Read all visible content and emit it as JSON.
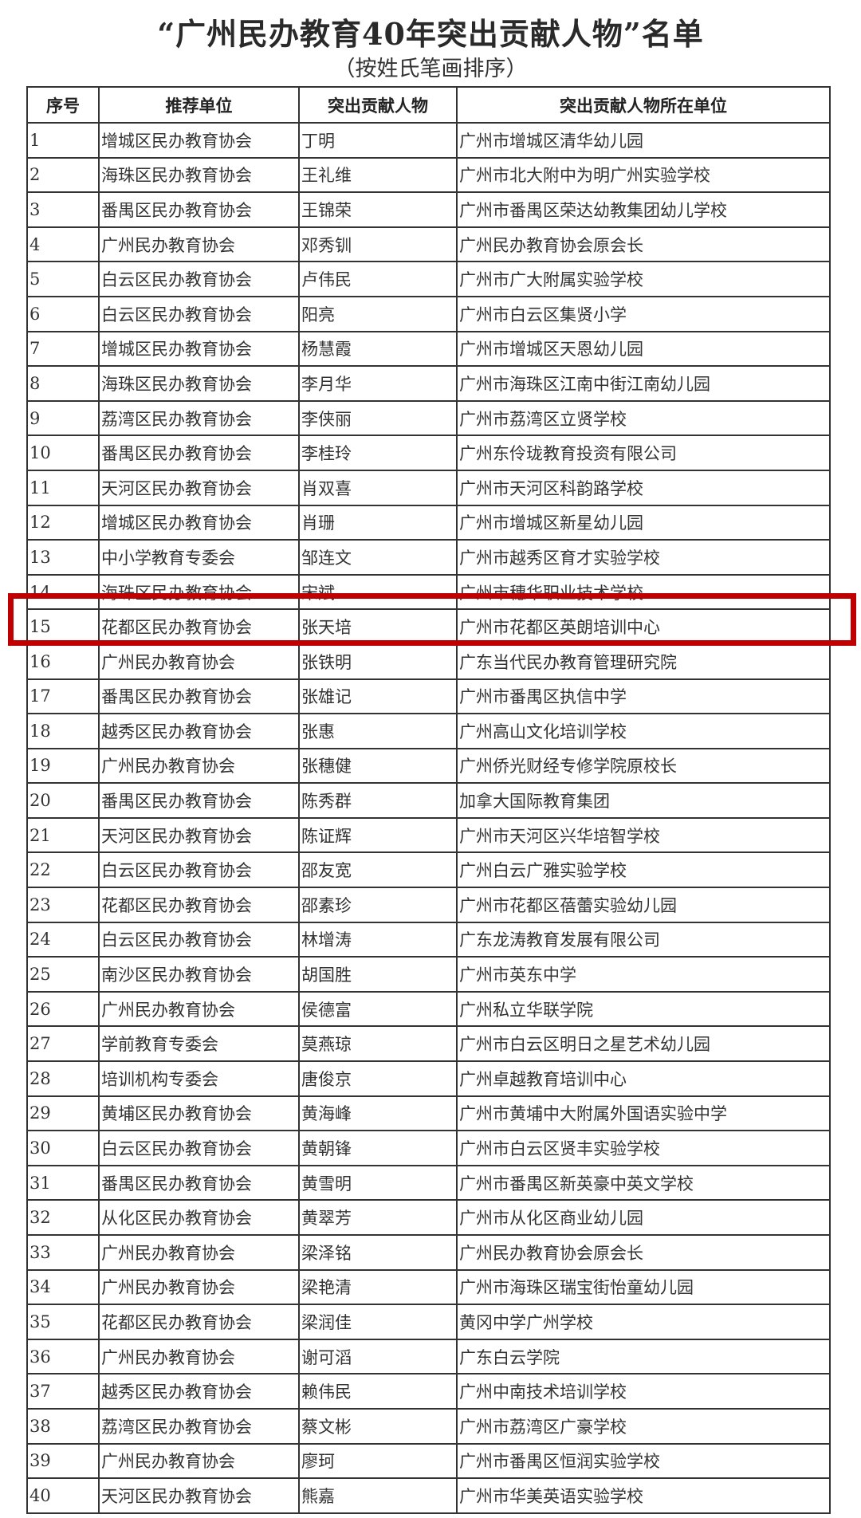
{
  "title": "“广州民办教育40年突出贡献人物”名单",
  "subtitle": "（按姓氏笔画排序）",
  "highlight_color": "#c00000",
  "highlighted_row": "15",
  "table": {
    "headers": [
      "序号",
      "推荐单位",
      "突出贡献人物",
      "突出贡献人物所在单位"
    ],
    "rows": [
      [
        "1",
        "增城区民办教育协会",
        "丁明",
        "广州市增城区清华幼儿园"
      ],
      [
        "2",
        "海珠区民办教育协会",
        "王礼维",
        "广州市北大附中为明广州实验学校"
      ],
      [
        "3",
        "番禺区民办教育协会",
        "王锦荣",
        "广州市番禺区荣达幼教集团幼儿学校"
      ],
      [
        "4",
        "广州民办教育协会",
        "邓秀钏",
        "广州民办教育协会原会长"
      ],
      [
        "5",
        "白云区民办教育协会",
        "卢伟民",
        "广州市广大附属实验学校"
      ],
      [
        "6",
        "白云区民办教育协会",
        "阳亮",
        "广州市白云区集贤小学"
      ],
      [
        "7",
        "增城区民办教育协会",
        "杨慧霞",
        "广州市增城区天恩幼儿园"
      ],
      [
        "8",
        "海珠区民办教育协会",
        "李月华",
        "广州市海珠区江南中街江南幼儿园"
      ],
      [
        "9",
        "荔湾区民办教育协会",
        "李侠丽",
        "广州市荔湾区立贤学校"
      ],
      [
        "10",
        "番禺区民办教育协会",
        "李桂玲",
        "广州东伶珑教育投资有限公司"
      ],
      [
        "11",
        "天河区民办教育协会",
        "肖双喜",
        "广州市天河区科韵路学校"
      ],
      [
        "12",
        "增城区民办教育协会",
        "肖珊",
        "广州市增城区新星幼儿园"
      ],
      [
        "13",
        "中小学教育专委会",
        "邹连文",
        "广州市越秀区育才实验学校"
      ],
      [
        "14",
        "海珠区民办教育协会",
        "宋斌",
        "广州市穗华职业技术学校"
      ],
      [
        "15",
        "花都区民办教育协会",
        "张天培",
        "广州市花都区英朗培训中心"
      ],
      [
        "16",
        "广州民办教育协会",
        "张铁明",
        "广东当代民办教育管理研究院"
      ],
      [
        "17",
        "番禺区民办教育协会",
        "张雄记",
        "广州市番禺区执信中学"
      ],
      [
        "18",
        "越秀区民办教育协会",
        "张惠",
        "广州高山文化培训学校"
      ],
      [
        "19",
        "广州民办教育协会",
        "张穗健",
        "广州侨光财经专修学院原校长"
      ],
      [
        "20",
        "番禺区民办教育协会",
        "陈秀群",
        "加拿大国际教育集团"
      ],
      [
        "21",
        "天河区民办教育协会",
        "陈证辉",
        "广州市天河区兴华培智学校"
      ],
      [
        "22",
        "白云区民办教育协会",
        "邵友宽",
        "广州白云广雅实验学校"
      ],
      [
        "23",
        "花都区民办教育协会",
        "邵素珍",
        "广州市花都区蓓蕾实验幼儿园"
      ],
      [
        "24",
        "白云区民办教育协会",
        "林增涛",
        "广东龙涛教育发展有限公司"
      ],
      [
        "25",
        "南沙区民办教育协会",
        "胡国胜",
        "广州市英东中学"
      ],
      [
        "26",
        "广州民办教育协会",
        "侯德富",
        "广州私立华联学院"
      ],
      [
        "27",
        "学前教育专委会",
        "莫燕琼",
        "广州市白云区明日之星艺术幼儿园"
      ],
      [
        "28",
        "培训机构专委会",
        "唐俊京",
        "广州卓越教育培训中心"
      ],
      [
        "29",
        "黄埔区民办教育协会",
        "黄海峰",
        "广州市黄埔中大附属外国语实验中学"
      ],
      [
        "30",
        "白云区民办教育协会",
        "黄朝锋",
        "广州市白云区贤丰实验学校"
      ],
      [
        "31",
        "番禺区民办教育协会",
        "黄雪明",
        "广州市番禺区新英豪中英文学校"
      ],
      [
        "32",
        "从化区民办教育协会",
        "黄翠芳",
        "广州市从化区商业幼儿园"
      ],
      [
        "33",
        "广州民办教育协会",
        "梁泽铭",
        "广州民办教育协会原会长"
      ],
      [
        "34",
        "广州民办教育协会",
        "梁艳清",
        "广州市海珠区瑞宝街怡童幼儿园"
      ],
      [
        "35",
        "花都区民办教育协会",
        "梁润佳",
        "黄冈中学广州学校"
      ],
      [
        "36",
        "广州民办教育协会",
        "谢可滔",
        "广东白云学院"
      ],
      [
        "37",
        "越秀区民办教育协会",
        "赖伟民",
        "广州中南技术培训学校"
      ],
      [
        "38",
        "荔湾区民办教育协会",
        "蔡文彬",
        "广州市荔湾区广豪学校"
      ],
      [
        "39",
        "广州民办教育协会",
        "廖珂",
        "广州市番禺区恒润实验学校"
      ],
      [
        "40",
        "天河区民办教育协会",
        "熊嘉",
        "广州市华美英语实验学校"
      ]
    ]
  }
}
